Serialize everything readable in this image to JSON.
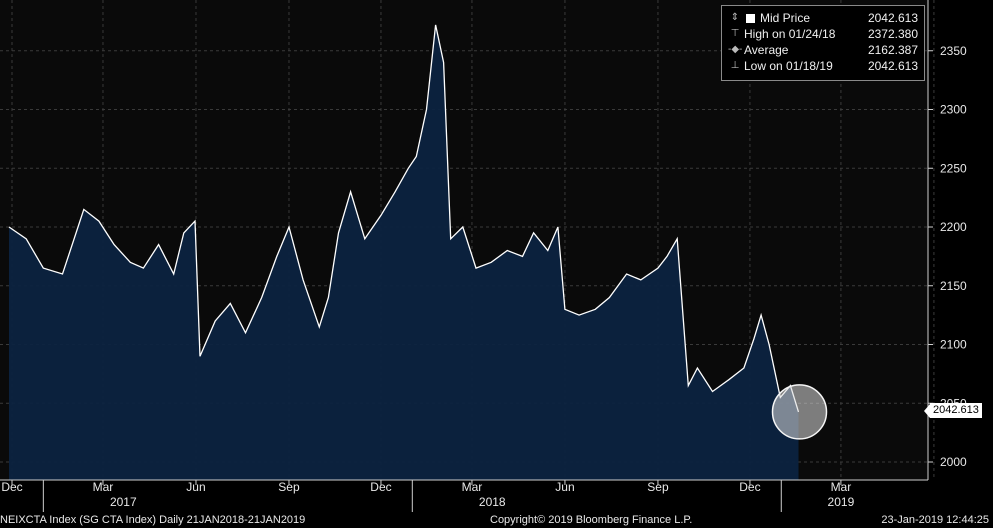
{
  "chart_data": {
    "type": "area",
    "title": "",
    "xlabel": "",
    "ylabel": "",
    "ylim": [
      1990,
      2380
    ],
    "grid": true,
    "y_ticks": [
      "2000",
      "2050",
      "2100",
      "2150",
      "2200",
      "2250",
      "2300",
      "2350"
    ],
    "month_ticks": [
      "Dec",
      "Mar",
      "Jun",
      "Sep",
      "Dec",
      "Mar",
      "Jun",
      "Sep",
      "Dec",
      "Mar"
    ],
    "year_labels": [
      "2017",
      "2018",
      "2019"
    ],
    "last_value_label": "2042.613",
    "series": [
      {
        "name": "Mid Price",
        "color": "#ffffff",
        "fill": "#0c2340",
        "x": [
          "2016-11-28",
          "2016-12-15",
          "2017-01-01",
          "2017-01-20",
          "2017-02-10",
          "2017-02-25",
          "2017-03-12",
          "2017-03-28",
          "2017-04-10",
          "2017-04-25",
          "2017-05-10",
          "2017-05-20",
          "2017-05-31",
          "2017-06-05",
          "2017-06-20",
          "2017-07-05",
          "2017-07-20",
          "2017-08-05",
          "2017-08-20",
          "2017-09-01",
          "2017-09-15",
          "2017-10-01",
          "2017-10-10",
          "2017-10-20",
          "2017-11-01",
          "2017-11-15",
          "2017-12-01",
          "2017-12-15",
          "2017-12-28",
          "2018-01-05",
          "2018-01-15",
          "2018-01-24",
          "2018-02-01",
          "2018-02-08",
          "2018-02-20",
          "2018-03-05",
          "2018-03-20",
          "2018-04-05",
          "2018-04-20",
          "2018-05-01",
          "2018-05-15",
          "2018-05-25",
          "2018-06-01",
          "2018-06-15",
          "2018-07-01",
          "2018-07-15",
          "2018-08-01",
          "2018-08-15",
          "2018-09-01",
          "2018-09-10",
          "2018-09-20",
          "2018-10-01",
          "2018-10-10",
          "2018-10-25",
          "2018-11-10",
          "2018-11-25",
          "2018-12-05",
          "2018-12-12",
          "2018-12-20",
          "2018-12-31",
          "2019-01-10",
          "2019-01-18"
        ],
        "values": [
          2200,
          2190,
          2165,
          2160,
          2215,
          2205,
          2185,
          2170,
          2165,
          2185,
          2160,
          2195,
          2205,
          2090,
          2120,
          2135,
          2110,
          2140,
          2175,
          2200,
          2155,
          2115,
          2140,
          2195,
          2230,
          2190,
          2210,
          2230,
          2250,
          2260,
          2300,
          2372,
          2340,
          2190,
          2200,
          2165,
          2170,
          2180,
          2175,
          2195,
          2180,
          2200,
          2130,
          2125,
          2130,
          2140,
          2160,
          2155,
          2165,
          2175,
          2190,
          2065,
          2080,
          2060,
          2070,
          2080,
          2105,
          2125,
          2100,
          2055,
          2065,
          2042.613
        ]
      }
    ],
    "legend": {
      "position": "top-right",
      "items": [
        {
          "label": "Mid Price",
          "value": "2042.613"
        },
        {
          "label": "High on 01/24/18",
          "value": "2372.380"
        },
        {
          "label": "Average",
          "value": "2162.387"
        },
        {
          "label": "Low on 01/18/19",
          "value": "2042.613"
        }
      ]
    }
  },
  "footer": {
    "left": "NEIXCTA Index (SG CTA Index)  Daily 21JAN2018-21JAN2019",
    "center": "Copyright© 2019 Bloomberg Finance L.P.",
    "right": "23-Jan-2019 12:44:25"
  }
}
